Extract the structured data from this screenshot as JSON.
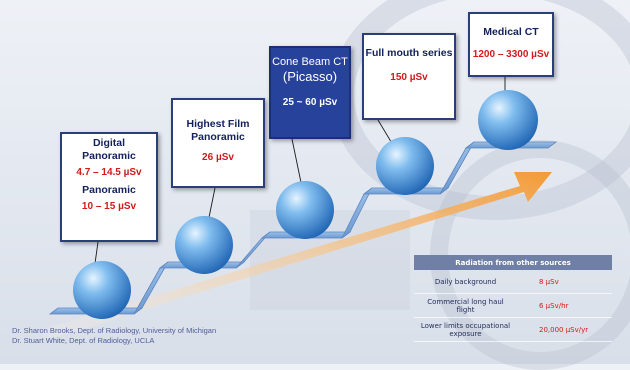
{
  "steps": [
    {
      "title_lines": [
        "Digital",
        "Panoramic"
      ],
      "dose": "4.7 – 14.5 µSv",
      "title2": "Panoramic",
      "dose2": "10 – 15 µSv"
    },
    {
      "title_lines": [
        "Highest Film",
        "Panoramic"
      ],
      "dose": "26 µSv"
    },
    {
      "title_lines": [
        "Cone Beam CT",
        "(Picasso)"
      ],
      "dose": "25 ~ 60 µSv"
    },
    {
      "title_lines": [
        "Full mouth series"
      ],
      "dose": "150 µSv"
    },
    {
      "title_lines": [
        "Medical CT"
      ],
      "dose": "1200 – 3300 µSv"
    }
  ],
  "credits": [
    "Dr. Sharon Brooks, Dept. of Radiology, University of Michigan",
    "Dr. Stuart White, Dept. of Radiology, UCLA"
  ],
  "table": {
    "header": "Radiation from other sources",
    "rows": [
      {
        "label": "Daily background",
        "value": "8 µSv"
      },
      {
        "label": "Commercial long haul flight",
        "value": "6 µSv/hr"
      },
      {
        "label": "Lower limits occupational exposure",
        "value": "20,000 µSv/yr"
      }
    ]
  },
  "colors": {
    "accent_red": "#d11a1a",
    "navy": "#27429a",
    "step_blue": "#7fa8d8",
    "arrow_orange": "#f5a34a"
  }
}
